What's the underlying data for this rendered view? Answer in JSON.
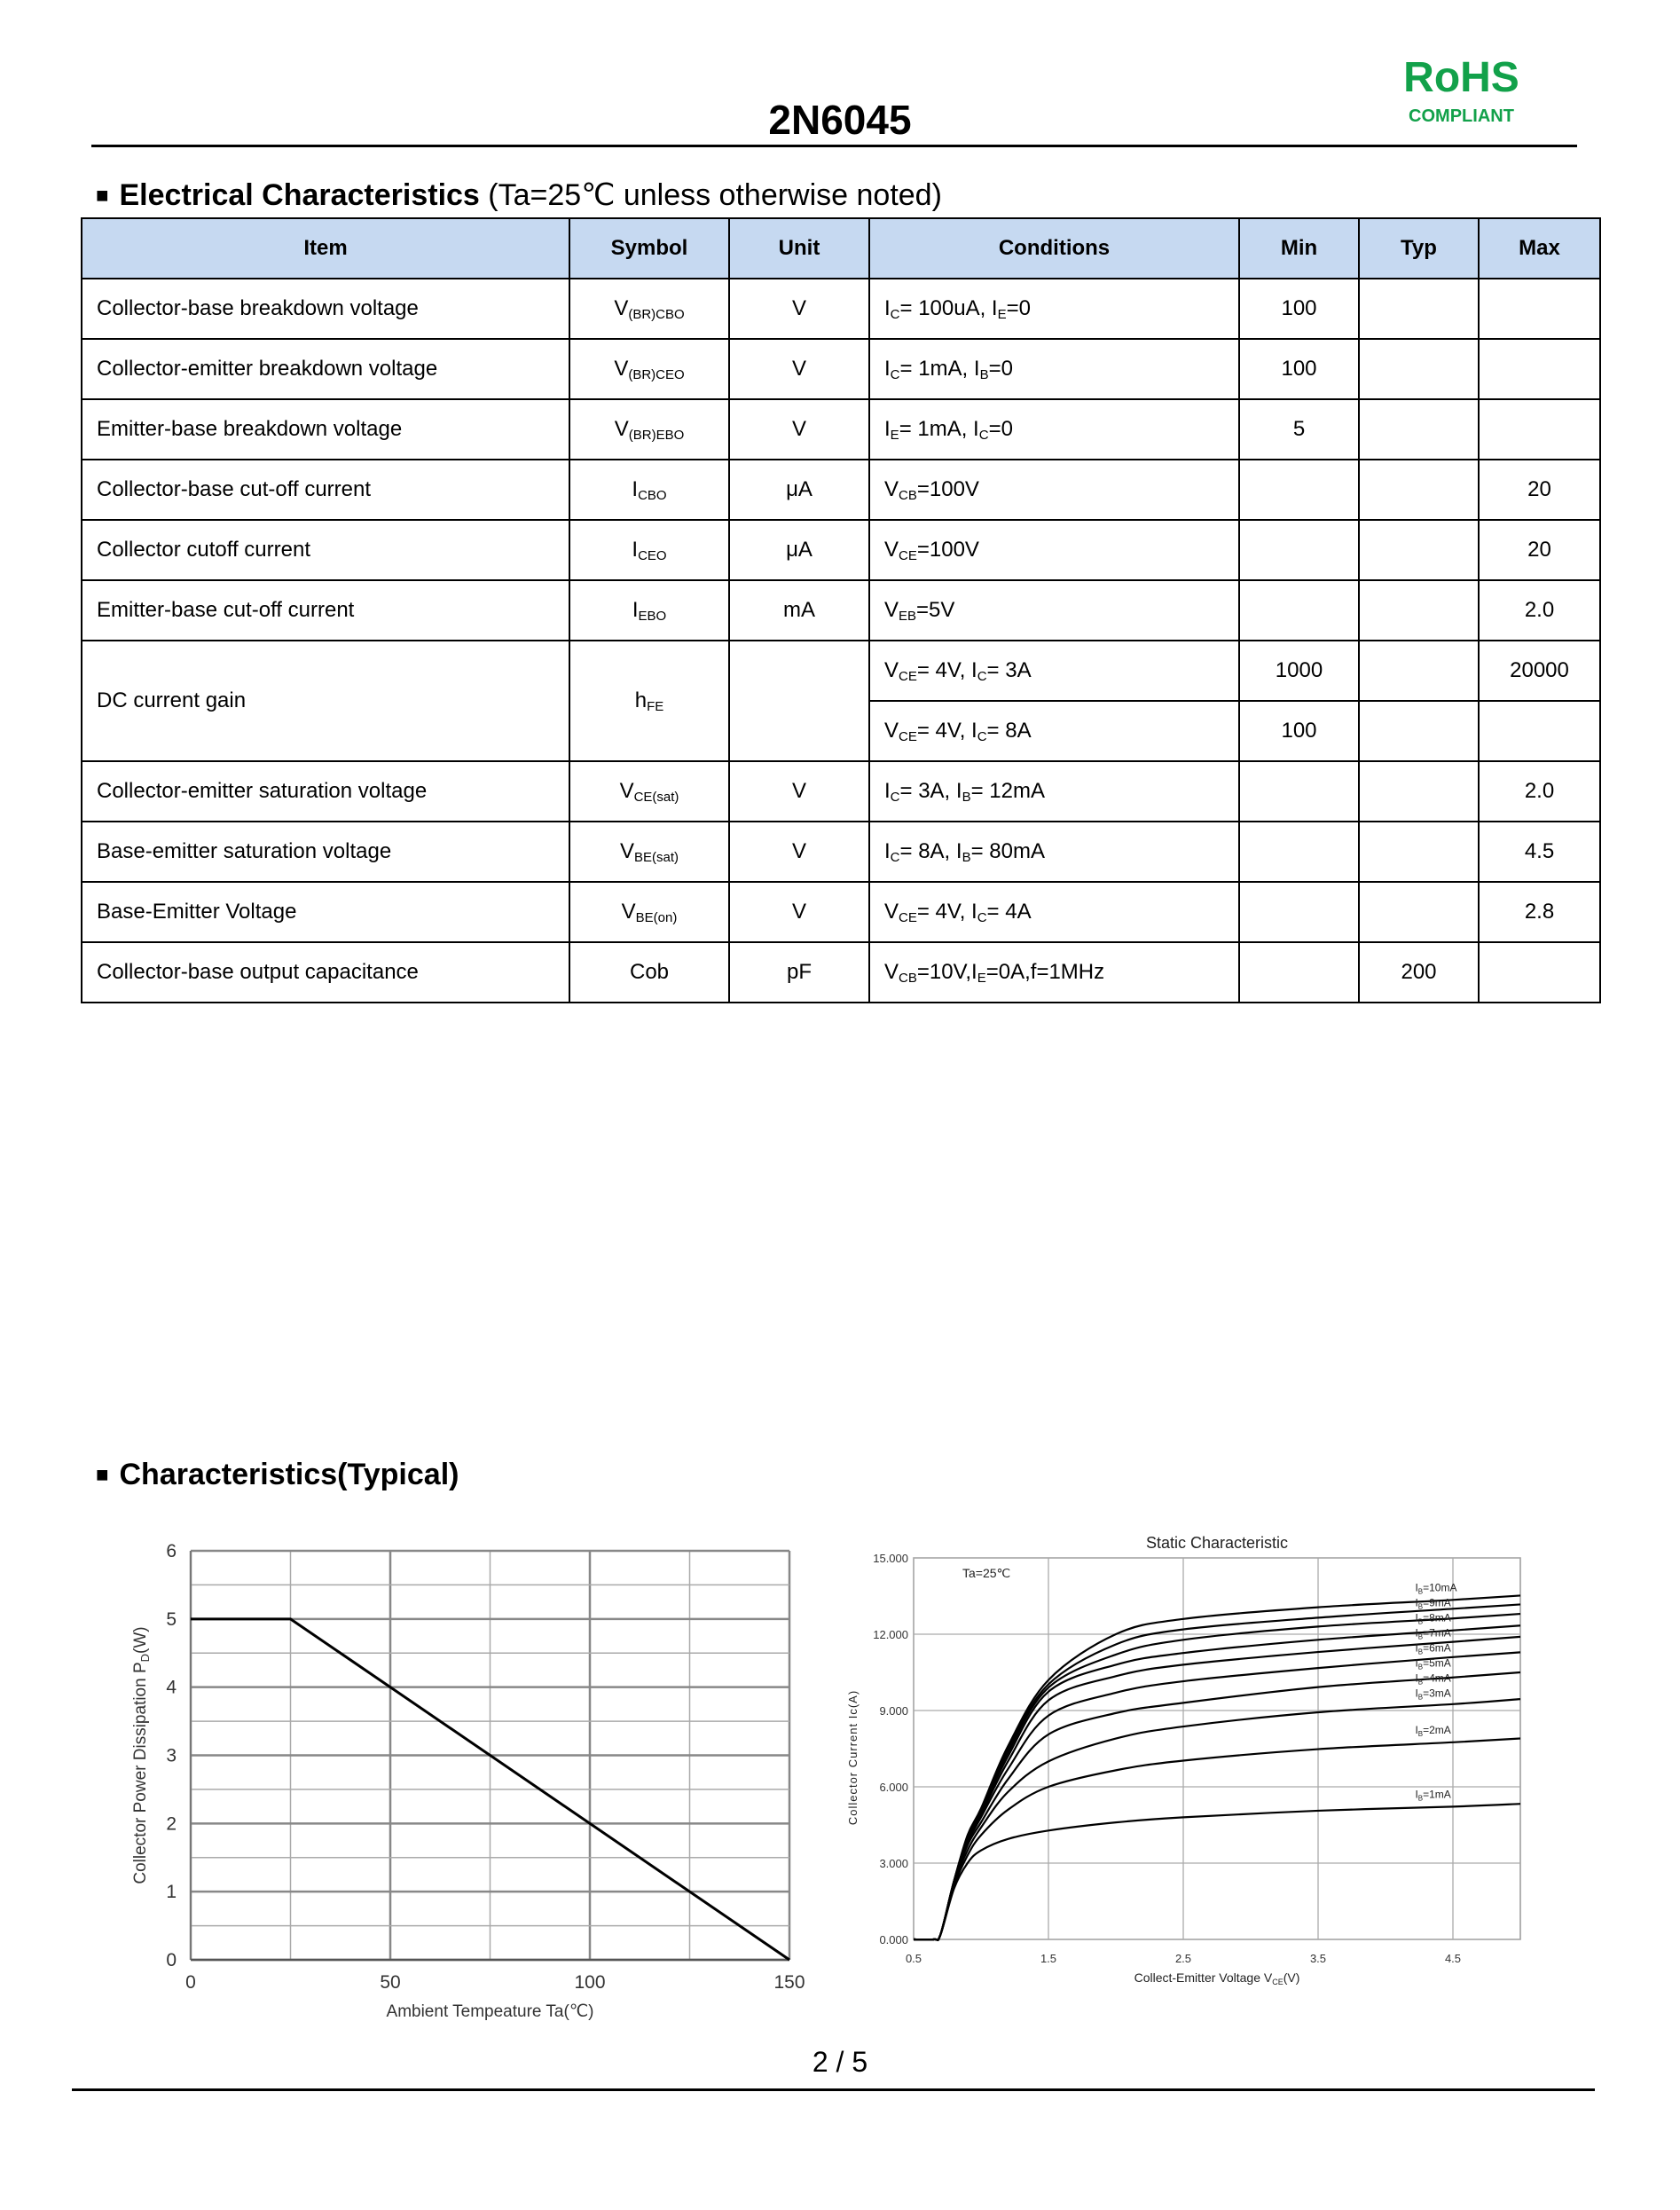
{
  "header": {
    "title": "2N6045",
    "rohs": "RoHS",
    "compliant": "COMPLIANT",
    "rohs_color": "#12a14a"
  },
  "section1": {
    "square": "■",
    "title": "Electrical Characteristics",
    "note": " (Ta=25℃ unless otherwise noted)"
  },
  "table": {
    "header_bg": "#c6d9f1",
    "columns": [
      "Item",
      "Symbol",
      "Unit",
      "Conditions",
      "Min",
      "Typ",
      "Max"
    ],
    "rows": [
      {
        "item": "Collector-base breakdown voltage",
        "symbol": {
          "m": "V",
          "s": "(BR)CBO"
        },
        "unit": "V",
        "conds": [
          {
            "cond": [
              {
                "t": "I"
              },
              {
                "s": "C"
              },
              {
                "t": "= 100uA, I"
              },
              {
                "s": "E"
              },
              {
                "t": "=0"
              }
            ],
            "min": "100",
            "typ": "",
            "max": ""
          }
        ]
      },
      {
        "item": "Collector-emitter breakdown voltage",
        "symbol": {
          "m": "V",
          "s": "(BR)CEO"
        },
        "unit": "V",
        "conds": [
          {
            "cond": [
              {
                "t": "I"
              },
              {
                "s": "C"
              },
              {
                "t": "= 1mA, I"
              },
              {
                "s": "B"
              },
              {
                "t": "=0"
              }
            ],
            "min": "100",
            "typ": "",
            "max": ""
          }
        ]
      },
      {
        "item": "Emitter-base breakdown voltage",
        "symbol": {
          "m": "V",
          "s": "(BR)EBO"
        },
        "unit": "V",
        "conds": [
          {
            "cond": [
              {
                "t": "I"
              },
              {
                "s": "E"
              },
              {
                "t": "= 1mA, I"
              },
              {
                "s": "C"
              },
              {
                "t": "=0"
              }
            ],
            "min": "5",
            "typ": "",
            "max": ""
          }
        ]
      },
      {
        "item": "Collector-base cut-off current",
        "symbol": {
          "m": "I",
          "s": "CBO"
        },
        "unit": "μA",
        "conds": [
          {
            "cond": [
              {
                "t": "V"
              },
              {
                "s": "CB"
              },
              {
                "t": "=100V"
              }
            ],
            "min": "",
            "typ": "",
            "max": "20"
          }
        ]
      },
      {
        "item": "Collector cutoff current",
        "symbol": {
          "m": "I",
          "s": "CEO"
        },
        "unit": "μA",
        "conds": [
          {
            "cond": [
              {
                "t": "V"
              },
              {
                "s": "CE"
              },
              {
                "t": "=100V"
              }
            ],
            "min": "",
            "typ": "",
            "max": "20"
          }
        ]
      },
      {
        "item": "Emitter-base cut-off current",
        "symbol": {
          "m": "I",
          "s": "EBO"
        },
        "unit": "mA",
        "conds": [
          {
            "cond": [
              {
                "t": "V"
              },
              {
                "s": "EB"
              },
              {
                "t": "=5V"
              }
            ],
            "min": "",
            "typ": "",
            "max": "2.0"
          }
        ]
      },
      {
        "item": "DC current gain",
        "symbol": {
          "m": "h",
          "s": "FE"
        },
        "unit": "",
        "conds": [
          {
            "cond": [
              {
                "t": "V"
              },
              {
                "s": "CE"
              },
              {
                "t": "= 4V, I"
              },
              {
                "s": "C"
              },
              {
                "t": "= 3A"
              }
            ],
            "min": "1000",
            "typ": "",
            "max": "20000"
          },
          {
            "cond": [
              {
                "t": "V"
              },
              {
                "s": "CE"
              },
              {
                "t": "= 4V, I"
              },
              {
                "s": "C"
              },
              {
                "t": "= 8A"
              }
            ],
            "min": "100",
            "typ": "",
            "max": ""
          }
        ]
      },
      {
        "item": "Collector-emitter saturation voltage",
        "symbol": {
          "m": "V",
          "s": "CE(sat)"
        },
        "unit": "V",
        "conds": [
          {
            "cond": [
              {
                "t": "I"
              },
              {
                "s": "C"
              },
              {
                "t": "= 3A, I"
              },
              {
                "s": "B"
              },
              {
                "t": "= 12mA"
              }
            ],
            "min": "",
            "typ": "",
            "max": "2.0"
          }
        ]
      },
      {
        "item": "Base-emitter saturation voltage",
        "symbol": {
          "m": "V",
          "s": "BE(sat)"
        },
        "unit": "V",
        "conds": [
          {
            "cond": [
              {
                "t": "I"
              },
              {
                "s": "C"
              },
              {
                "t": "= 8A, I"
              },
              {
                "s": "B"
              },
              {
                "t": "= 80mA"
              }
            ],
            "min": "",
            "typ": "",
            "max": "4.5"
          }
        ]
      },
      {
        "item": "Base-Emitter Voltage",
        "symbol": {
          "m": "V",
          "s": "BE(on)"
        },
        "unit": "V",
        "conds": [
          {
            "cond": [
              {
                "t": "V"
              },
              {
                "s": "CE"
              },
              {
                "t": "= 4V, I"
              },
              {
                "s": "C"
              },
              {
                "t": "= 4A"
              }
            ],
            "min": "",
            "typ": "",
            "max": "2.8"
          }
        ]
      },
      {
        "item": "Collector-base output capacitance",
        "symbol": {
          "m": "Cob",
          "s": ""
        },
        "unit": "pF",
        "conds": [
          {
            "cond": [
              {
                "t": "V"
              },
              {
                "s": "CB"
              },
              {
                "t": "=10V,I"
              },
              {
                "s": "E"
              },
              {
                "t": "=0A,f=1MHz"
              }
            ],
            "min": "",
            "typ": "200",
            "max": ""
          }
        ]
      }
    ]
  },
  "section2": {
    "square": "■",
    "title": "Characteristics(Typical)"
  },
  "chart_data": [
    {
      "type": "line",
      "title": "",
      "xlabel": "Ambient Tempeature Ta(℃)",
      "ylabel_main": "Collector Power Dissipation   P",
      "ylabel_sub": "D",
      "ylabel_unit": "(W)",
      "xlim": [
        0,
        150
      ],
      "ylim": [
        0,
        6
      ],
      "xticks": [
        "0",
        "50",
        "100",
        "150"
      ],
      "yticks": [
        "0",
        "1",
        "2",
        "3",
        "4",
        "5",
        "6"
      ],
      "grid": true,
      "series": [
        {
          "x": [
            0,
            25,
            150
          ],
          "y": [
            5,
            5,
            0
          ]
        }
      ]
    },
    {
      "type": "line",
      "title": "Static Characteristic",
      "annotation": "Ta=25℃",
      "xlabel_main": "Collect-Emitter Voltage  V",
      "xlabel_sub": "CE",
      "xlabel_unit": "(V)",
      "ylabel": "Collector Current  Ic(A)",
      "xlim": [
        0.5,
        5.0
      ],
      "ylim": [
        0,
        15
      ],
      "xticks": [
        "0.5",
        "1.5",
        "2.5",
        "3.5",
        "4.5"
      ],
      "yticks": [
        "0.000",
        "3.000",
        "6.000",
        "9.000",
        "12.000",
        "15.000"
      ],
      "grid": true,
      "x": [
        0.5,
        0.65,
        0.7,
        0.8,
        0.9,
        1.0,
        1.2,
        1.5,
        2.0,
        2.5,
        3.5,
        4.5,
        5.0
      ],
      "series": [
        {
          "name": "IB=1mA",
          "label": {
            "m": "I",
            "s": "B",
            "t": "=1mA"
          },
          "y": [
            0,
            0,
            0.2,
            2.0,
            3.0,
            3.5,
            3.95,
            4.28,
            4.6,
            4.8,
            5.06,
            5.22,
            5.33
          ]
        },
        {
          "name": "IB=2mA",
          "label": {
            "m": "I",
            "s": "B",
            "t": "=2mA"
          },
          "y": [
            0,
            0,
            0.2,
            2.1,
            3.3,
            4.1,
            5.1,
            6.0,
            6.65,
            7.03,
            7.48,
            7.75,
            7.9
          ]
        },
        {
          "name": "IB=3mA",
          "label": {
            "m": "I",
            "s": "B",
            "t": "=3mA"
          },
          "y": [
            0,
            0,
            0.2,
            2.2,
            3.5,
            4.4,
            5.8,
            7.0,
            7.9,
            8.37,
            8.93,
            9.25,
            9.45
          ]
        },
        {
          "name": "IB=4mA",
          "label": {
            "m": "I",
            "s": "B",
            "t": "=4mA"
          },
          "y": [
            0,
            0,
            0.2,
            2.2,
            3.7,
            4.6,
            6.3,
            8.06,
            8.9,
            9.3,
            9.92,
            10.3,
            10.5
          ]
        },
        {
          "name": "IB=5mA",
          "label": {
            "m": "I",
            "s": "B",
            "t": "=5mA"
          },
          "y": [
            0,
            0,
            0.2,
            2.3,
            3.8,
            4.8,
            6.7,
            8.8,
            9.7,
            10.15,
            10.67,
            11.1,
            11.29
          ]
        },
        {
          "name": "IB=6mA",
          "label": {
            "m": "I",
            "s": "B",
            "t": "=6mA"
          },
          "y": [
            0,
            0,
            0.2,
            2.3,
            3.9,
            4.9,
            7.0,
            9.4,
            10.35,
            10.8,
            11.3,
            11.7,
            11.9
          ]
        },
        {
          "name": "IB=7mA",
          "label": {
            "m": "I",
            "s": "B",
            "t": "=7mA"
          },
          "y": [
            0,
            0,
            0.2,
            2.3,
            4.0,
            5.0,
            7.2,
            9.74,
            10.8,
            11.26,
            11.78,
            12.15,
            12.34
          ]
        },
        {
          "name": "IB=8mA",
          "label": {
            "m": "I",
            "s": "B",
            "t": "=8mA"
          },
          "y": [
            0,
            0,
            0.2,
            2.3,
            4.0,
            5.05,
            7.35,
            9.9,
            11.2,
            11.78,
            12.3,
            12.62,
            12.8
          ]
        },
        {
          "name": "IB=9mA",
          "label": {
            "m": "I",
            "s": "B",
            "t": "=9mA"
          },
          "y": [
            0,
            0,
            0.2,
            2.3,
            4.05,
            5.1,
            7.5,
            10.03,
            11.6,
            12.19,
            12.65,
            13.0,
            13.17
          ]
        },
        {
          "name": "IB=10mA",
          "label": {
            "m": "I",
            "s": "B",
            "t": "=10mA"
          },
          "y": [
            0,
            0,
            0.2,
            2.3,
            4.1,
            5.15,
            7.6,
            10.2,
            12.0,
            12.6,
            13.06,
            13.35,
            13.52
          ]
        }
      ]
    }
  ],
  "footer": {
    "page": "2 / 5"
  }
}
